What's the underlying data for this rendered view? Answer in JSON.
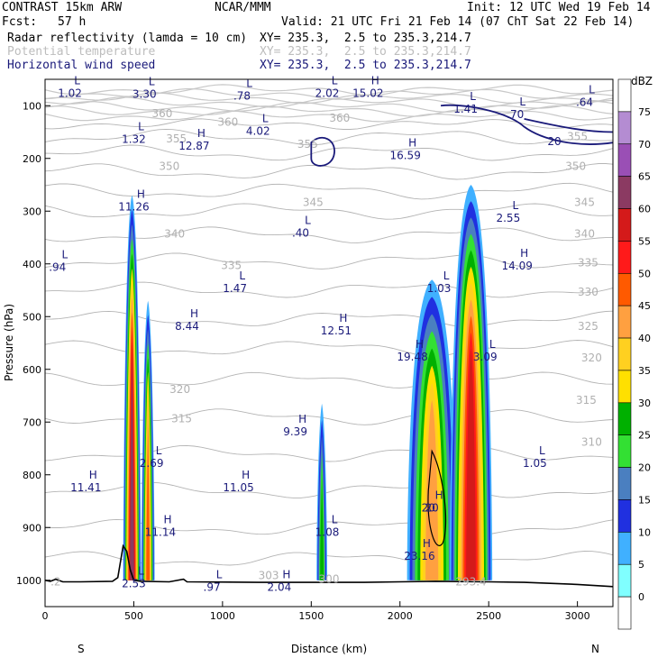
{
  "header": {
    "model": "CONTRAST 15km ARW",
    "center": "NCAR/MMM",
    "init": "Init: 12 UTC Wed 19 Feb 14",
    "fcst_label": "Fcst:",
    "fcst_value": "57 h",
    "valid": "Valid: 21 UTC Fri 21 Feb 14 (07 ChT Sat 22 Feb 14)",
    "field1": "Radar reflectivity (lamda = 10 cm)",
    "field1_xy": "XY= 235.3,  2.5 to 235.3,214.7",
    "field2": "Potential temperature",
    "field2_xy": "XY= 235.3,  2.5 to 235.3,214.7",
    "field3": "Horizontal wind speed",
    "field3_xy": "XY= 235.3,  2.5 to 235.3,214.7"
  },
  "chart_data": {
    "type": "heatmap",
    "xlabel": "Distance (km)",
    "ylabel": "Pressure (hPa)",
    "x_ticks": [
      0,
      500,
      1000,
      1500,
      2000,
      2500,
      3000
    ],
    "y_ticks": [
      100,
      200,
      300,
      400,
      500,
      600,
      700,
      800,
      900,
      1000
    ],
    "xlim": [
      0,
      3200
    ],
    "ylim": [
      1050,
      50
    ],
    "x_end_labels": {
      "left": "S",
      "right": "N"
    },
    "colorbar": {
      "label": "dBZ",
      "levels": [
        "75",
        "70",
        "65",
        "60",
        "55",
        "50",
        "45",
        "40",
        "35",
        "30",
        "25",
        "20",
        "15",
        "10",
        "5",
        "0"
      ],
      "colors": [
        "#ffffff",
        "#b48cd2",
        "#9a4fb5",
        "#8b3a62",
        "#d41a1a",
        "#ff1a1a",
        "#ff5a00",
        "#ffa040",
        "#ffd020",
        "#ffe000",
        "#00b000",
        "#33e033",
        "#4a7fc0",
        "#2030e0",
        "#40b0ff",
        "#80ffff",
        "#ffffff"
      ]
    },
    "theta_labels": [
      {
        "text": "360",
        "x": 660,
        "y": 122
      },
      {
        "text": "360",
        "x": 1030,
        "y": 138
      },
      {
        "text": "360",
        "x": 1660,
        "y": 130
      },
      {
        "text": "355",
        "x": 740,
        "y": 170
      },
      {
        "text": "355",
        "x": 1480,
        "y": 180
      },
      {
        "text": "355",
        "x": 3000,
        "y": 165
      },
      {
        "text": "350",
        "x": 700,
        "y": 222
      },
      {
        "text": "350",
        "x": 2990,
        "y": 222
      },
      {
        "text": "345",
        "x": 1510,
        "y": 290
      },
      {
        "text": "345",
        "x": 3040,
        "y": 290
      },
      {
        "text": "340",
        "x": 730,
        "y": 350
      },
      {
        "text": "340",
        "x": 3040,
        "y": 350
      },
      {
        "text": "335",
        "x": 1050,
        "y": 410
      },
      {
        "text": "335",
        "x": 3060,
        "y": 405
      },
      {
        "text": "330",
        "x": 3060,
        "y": 460
      },
      {
        "text": "325",
        "x": 3060,
        "y": 525
      },
      {
        "text": "320",
        "x": 760,
        "y": 645
      },
      {
        "text": "320",
        "x": 3080,
        "y": 585
      },
      {
        "text": "315",
        "x": 770,
        "y": 700
      },
      {
        "text": "315",
        "x": 3050,
        "y": 665
      },
      {
        "text": "310",
        "x": 3080,
        "y": 745
      },
      {
        "text": "300",
        "x": 1600,
        "y": 1005
      },
      {
        "text": "293.4",
        "x": 2400,
        "y": 1010
      },
      {
        "text": "303",
        "x": 1260,
        "y": 998
      },
      {
        "text": ".2",
        "x": 60,
        "y": 1010
      }
    ],
    "hl_labels": [
      {
        "t": "L",
        "v": "1.02",
        "x": 140,
        "y": 80
      },
      {
        "t": "L",
        "v": "3.30",
        "x": 560,
        "y": 82
      },
      {
        "t": "L",
        "v": ".78",
        "x": 1110,
        "y": 85
      },
      {
        "t": "L",
        "v": "2.02",
        "x": 1590,
        "y": 80
      },
      {
        "t": "H",
        "v": "15.02",
        "x": 1820,
        "y": 80
      },
      {
        "t": "L",
        "v": "1.41",
        "x": 2370,
        "y": 110
      },
      {
        "t": "L",
        "v": ".70",
        "x": 2650,
        "y": 120
      },
      {
        "t": "L",
        "v": ".64",
        "x": 3040,
        "y": 97
      },
      {
        "t": "L",
        "v": "1.32",
        "x": 500,
        "y": 167
      },
      {
        "t": "H",
        "v": "12.87",
        "x": 840,
        "y": 180
      },
      {
        "t": "L",
        "v": "4.02",
        "x": 1200,
        "y": 152
      },
      {
        "t": "H",
        "v": "16.59",
        "x": 2030,
        "y": 198
      },
      {
        "t": "H",
        "v": "11.26",
        "x": 500,
        "y": 295
      },
      {
        "t": "L",
        "v": "2.55",
        "x": 2610,
        "y": 317
      },
      {
        "t": "L",
        "v": ".40",
        "x": 1440,
        "y": 345
      },
      {
        "t": "L",
        "v": ".94",
        "x": 70,
        "y": 410
      },
      {
        "t": "H",
        "v": "14.09",
        "x": 2660,
        "y": 407
      },
      {
        "t": "L",
        "v": "1.47",
        "x": 1070,
        "y": 450
      },
      {
        "t": "L",
        "v": "1.03",
        "x": 2220,
        "y": 450
      },
      {
        "t": "H",
        "v": "8.44",
        "x": 800,
        "y": 522
      },
      {
        "t": "H",
        "v": "12.51",
        "x": 1640,
        "y": 530
      },
      {
        "t": "H",
        "v": "19.48",
        "x": 2070,
        "y": 580
      },
      {
        "t": "L",
        "v": "3.09",
        "x": 2480,
        "y": 580
      },
      {
        "t": "H",
        "v": "9.39",
        "x": 1410,
        "y": 722
      },
      {
        "t": "L",
        "v": "2.69",
        "x": 600,
        "y": 782
      },
      {
        "t": "L",
        "v": "1.05",
        "x": 2760,
        "y": 782
      },
      {
        "t": "H",
        "v": "11.41",
        "x": 230,
        "y": 828
      },
      {
        "t": "H",
        "v": "11.05",
        "x": 1090,
        "y": 828
      },
      {
        "t": "H",
        "v": "20",
        "x": 2180,
        "y": 866
      },
      {
        "t": "H",
        "v": "11.14",
        "x": 650,
        "y": 912
      },
      {
        "t": "L",
        "v": "1.08",
        "x": 1590,
        "y": 912
      },
      {
        "t": "H",
        "v": "23.16",
        "x": 2110,
        "y": 958
      },
      {
        "t": "L",
        "v": "2.53",
        "x": 500,
        "y": 1010
      },
      {
        "t": "L",
        "v": ".97",
        "x": 940,
        "y": 1017
      },
      {
        "t": "H",
        "v": "2.04",
        "x": 1320,
        "y": 1017
      }
    ],
    "wind_labels": [
      {
        "text": "20",
        "x": 2870,
        "y": 175
      },
      {
        "text": "20",
        "x": 2160,
        "y": 870
      }
    ],
    "cells": [
      {
        "x0": 440,
        "x1": 540,
        "ptop": 270,
        "pbot": 1010,
        "peak": 55,
        "core": 490
      },
      {
        "x0": 545,
        "x1": 620,
        "ptop": 470,
        "pbot": 1010,
        "peak": 40,
        "core": 580
      },
      {
        "x0": 1530,
        "x1": 1590,
        "ptop": 665,
        "pbot": 1010,
        "peak": 20,
        "core": 1560
      },
      {
        "x0": 2020,
        "x1": 2300,
        "ptop": 430,
        "pbot": 1010,
        "peak": 35,
        "core": 2180
      },
      {
        "x0": 2300,
        "x1": 2540,
        "ptop": 250,
        "pbot": 1010,
        "peak": 50,
        "core": 2400
      }
    ],
    "surface_pressure": [
      [
        0,
        1000
      ],
      [
        30,
        1002
      ],
      [
        60,
        998
      ],
      [
        100,
        1003
      ],
      [
        200,
        1003
      ],
      [
        380,
        1002
      ],
      [
        410,
        995
      ],
      [
        440,
        935
      ],
      [
        460,
        945
      ],
      [
        480,
        980
      ],
      [
        500,
        1000
      ],
      [
        540,
        1002
      ],
      [
        700,
        1003
      ],
      [
        780,
        998
      ],
      [
        800,
        1003
      ],
      [
        1200,
        1004
      ],
      [
        1500,
        1004
      ],
      [
        1800,
        1004
      ],
      [
        2000,
        1003
      ],
      [
        2200,
        1002
      ],
      [
        2500,
        1003
      ],
      [
        2700,
        1004
      ],
      [
        3000,
        1008
      ],
      [
        3200,
        1012
      ]
    ]
  }
}
